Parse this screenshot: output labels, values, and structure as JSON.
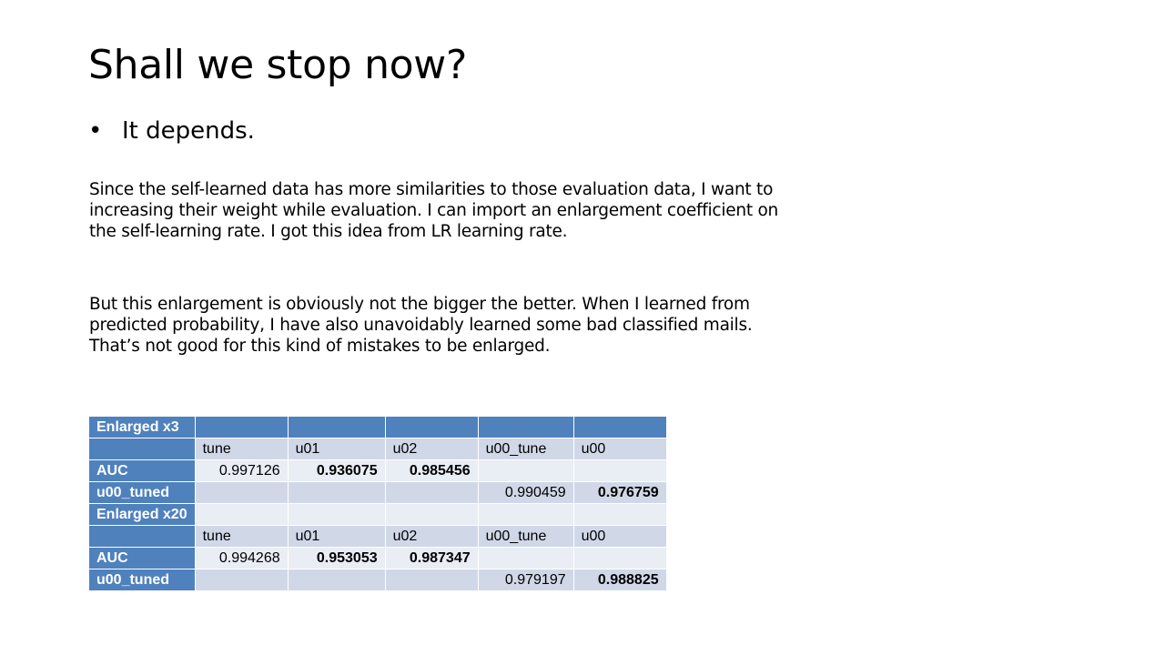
{
  "slide": {
    "title": "Shall we stop now?",
    "bullet_char": "•",
    "bullet_text": "It depends.",
    "paragraph_1": "Since the self-learned data has more similarities to those evaluation data, I want to increasing their weight while evaluation. I can import an enlargement coefficient on the self-learning rate. I got this idea from LR learning rate.",
    "paragraph_2": "But this enlargement is obviously not the bigger the better. When I learned from predicted probability, I have also unavoidably learned some bad classified mails. That’s not good for this kind of mistakes to be enlarged."
  },
  "table": {
    "columns": [
      "tune",
      "u01",
      "u02",
      "u00_tune",
      "u00"
    ],
    "sections": [
      {
        "label": "Enlarged x3",
        "auc_label": "AUC",
        "auc": {
          "tune": "0.997126",
          "u01": "0.936075",
          "u02": "0.985456"
        },
        "tuned_label": "u00_tuned",
        "tuned": {
          "u00_tune": "0.990459",
          "u00": "0.976759"
        }
      },
      {
        "label": "Enlarged x20",
        "auc_label": "AUC",
        "auc": {
          "tune": "0.994268",
          "u01": "0.953053",
          "u02": "0.987347"
        },
        "tuned_label": "u00_tuned",
        "tuned": {
          "u00_tune": "0.979197",
          "u00": "0.988825"
        }
      }
    ]
  },
  "colors": {
    "header_blue": "#4f81bd",
    "row_dark": "#d0d8e8",
    "row_light": "#e9edf4"
  }
}
